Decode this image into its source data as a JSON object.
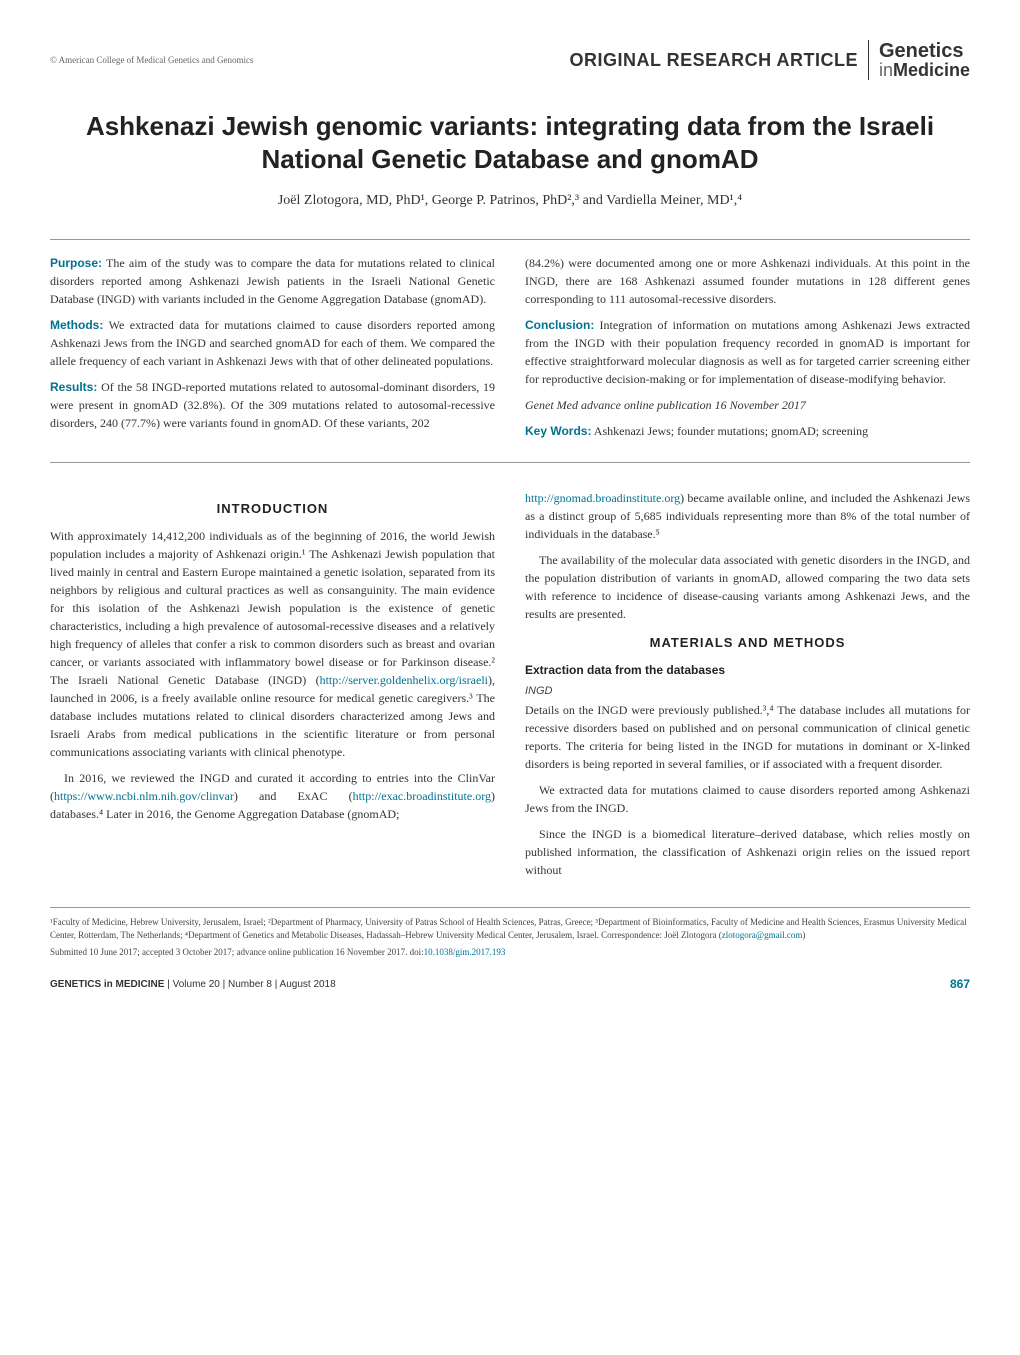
{
  "header": {
    "publisher": "© American College of Medical Genetics and Genomics",
    "article_type": "ORIGINAL RESEARCH ARTICLE",
    "journal_line1": "Genetics",
    "journal_in": "in",
    "journal_medicine": "Medicine"
  },
  "title": "Ashkenazi Jewish genomic variants: integrating data from the Israeli National Genetic Database and gnomAD",
  "authors": "Joël Zlotogora, MD, PhD¹, George P. Patrinos, PhD²,³ and Vardiella Meiner, MD¹,⁴",
  "abstract": {
    "purpose_label": "Purpose:",
    "purpose_text": " The aim of the study was to compare the data for mutations related to clinical disorders reported among Ashkenazi Jewish patients in the Israeli National Genetic Database (INGD) with variants included in the Genome Aggregation Database (gnomAD).",
    "methods_label": "Methods:",
    "methods_text": " We extracted data for mutations claimed to cause disorders reported among Ashkenazi Jews from the INGD and searched gnomAD for each of them. We compared the allele frequency of each variant in Ashkenazi Jews with that of other delineated populations.",
    "results_label": "Results:",
    "results_text": " Of the 58 INGD-reported mutations related to autosomal-dominant disorders, 19 were present in gnomAD (32.8%). Of the 309 mutations related to autosomal-recessive disorders, 240 (77.7%) were variants found in gnomAD. Of these variants, 202",
    "results_cont": "(84.2%) were documented among one or more Ashkenazi individuals. At this point in the INGD, there are 168 Ashkenazi assumed founder mutations in 128 different genes corresponding to 111 autosomal-recessive disorders.",
    "conclusion_label": "Conclusion:",
    "conclusion_text": " Integration of information on mutations among Ashkenazi Jews extracted from the INGD with their population frequency recorded in gnomAD is important for effective straightforward molecular diagnosis as well as for targeted carrier screening either for reproductive decision-making or for implementation of disease-modifying behavior.",
    "citation": "Genet Med advance online publication 16 November 2017",
    "keywords_label": "Key Words:",
    "keywords_text": " Ashkenazi Jews; founder mutations; gnomAD; screening"
  },
  "sections": {
    "intro_heading": "INTRODUCTION",
    "intro_p1": "With approximately 14,412,200 individuals as of the beginning of 2016, the world Jewish population includes a majority of Ashkenazi origin.¹ The Ashkenazi Jewish population that lived mainly in central and Eastern Europe maintained a genetic isolation, separated from its neighbors by religious and cultural practices as well as consanguinity. The main evidence for this isolation of the Ashkenazi Jewish population is the existence of genetic characteristics, including a high prevalence of autosomal-recessive diseases and a relatively high frequency of alleles that confer a risk to common disorders such as breast and ovarian cancer, or variants associated with inflammatory bowel disease or for Parkinson disease.² The Israeli National Genetic Database (INGD) (",
    "intro_link1": "http://server.goldenhelix.org/israeli",
    "intro_p1b": "), launched in 2006, is a freely available online resource for medical genetic caregivers.³ The database includes mutations related to clinical disorders characterized among Jews and Israeli Arabs from medical publications in the scientific literature or from personal communications associating variants with clinical phenotype.",
    "intro_p2a": "In 2016, we reviewed the INGD and curated it according to entries into the ClinVar (",
    "intro_link2": "https://www.ncbi.nlm.nih.gov/clinvar",
    "intro_p2b": ") and ExAC (",
    "intro_link3": "http://exac.broadinstitute.org",
    "intro_p2c": ") databases.⁴ Later in 2016, the Genome Aggregation Database (gnomAD;",
    "intro_link4": "http://gnomad.broadinstitute.org",
    "intro_p2d": ") became available online, and included the Ashkenazi Jews as a distinct group of 5,685 individuals representing more than 8% of the total number of individuals in the database.⁵",
    "intro_p3": "The availability of the molecular data associated with genetic disorders in the INGD, and the population distribution of variants in gnomAD, allowed comparing the two data sets with reference to incidence of disease-causing variants among Ashkenazi Jews, and the results are presented.",
    "methods_heading": "MATERIALS AND METHODS",
    "methods_sub1": "Extraction data from the databases",
    "methods_sub1a": "INGD",
    "methods_p1": "Details on the INGD were previously published.³,⁴ The database includes all mutations for recessive disorders based on published and on personal communication of clinical genetic reports. The criteria for being listed in the INGD for mutations in dominant or X-linked disorders is being reported in several families, or if associated with a frequent disorder.",
    "methods_p2": "We extracted data for mutations claimed to cause disorders reported among Ashkenazi Jews from the INGD.",
    "methods_p3": "Since the INGD is a biomedical literature–derived database, which relies mostly on published information, the classification of Ashkenazi origin relies on the issued report without"
  },
  "affiliations": "¹Faculty of Medicine, Hebrew University, Jerusalem, Israel; ²Department of Pharmacy, University of Patras School of Health Sciences, Patras, Greece; ³Department of Bioinformatics, Faculty of Medicine and Health Sciences, Erasmus University Medical Center, Rotterdam, The Netherlands; ⁴Department of Genetics and Metabolic Diseases, Hadassah–Hebrew University Medical Center, Jerusalem, Israel. Correspondence: Joël Zlotogora (",
  "corr_email": "zlotogora@gmail.com",
  "affiliations_end": ")",
  "submitted": "Submitted 10 June 2017; accepted 3 October 2017; advance online publication 16 November 2017. doi:",
  "doi": "10.1038/gim.2017.193",
  "footer": {
    "journal_bold": "GENETICS in MEDICINE",
    "volume_info": " | Volume 20 | Number 8 | August 2018",
    "page": "867"
  },
  "colors": {
    "accent": "#00728f",
    "text": "#333333",
    "light_text": "#666666",
    "border": "#999999"
  }
}
